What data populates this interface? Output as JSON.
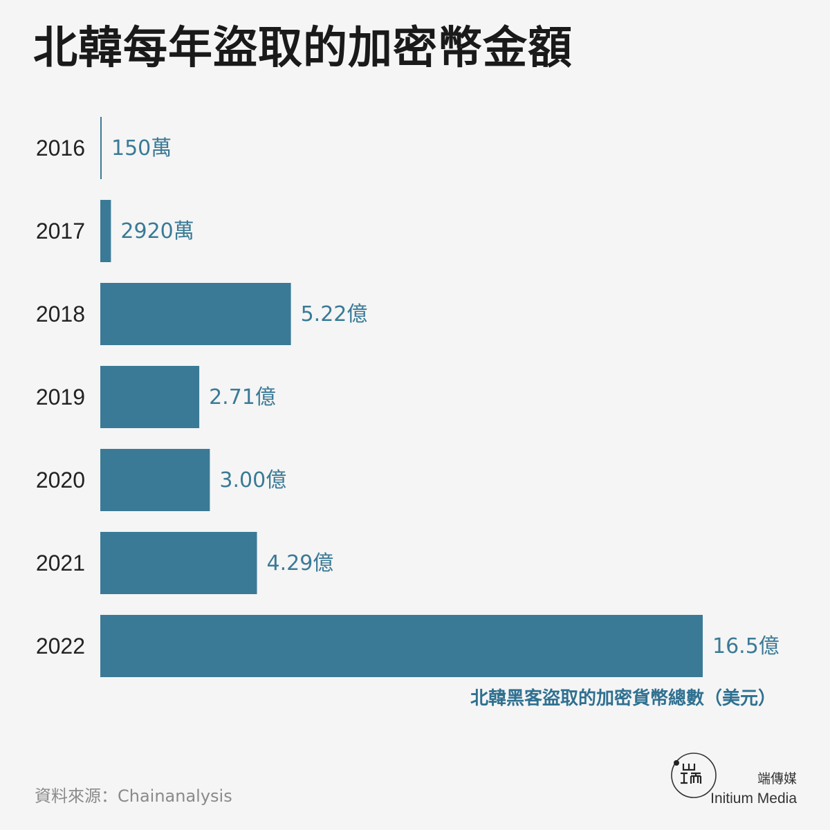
{
  "title": "北韓每年盜取的加密幣金額",
  "chart_data": {
    "type": "bar",
    "orientation": "horizontal",
    "categories": [
      "2016",
      "2017",
      "2018",
      "2019",
      "2020",
      "2021",
      "2022"
    ],
    "values": [
      1500000,
      29200000,
      522000000,
      271000000,
      300000000,
      429000000,
      1650000000
    ],
    "value_labels": [
      "150萬",
      "2920萬",
      "5.22億",
      "2.71億",
      "3.00億",
      "4.29億",
      "16.5億"
    ],
    "xlabel": "北韓黑客盜取的加密貨幣總數（美元）",
    "ylabel": "",
    "xlim": [
      0,
      1650000000
    ],
    "grid": false,
    "legend": "none",
    "colors": {
      "bar": "#3a7a96",
      "value_label": "#3a7a96",
      "axis_caption": "#2f7090"
    }
  },
  "source": "資料來源：Chainanalysis",
  "brand": {
    "name_cn": "端傳媒",
    "name_en": "Initium Media",
    "logo_icon": "initium-logo-icon"
  }
}
